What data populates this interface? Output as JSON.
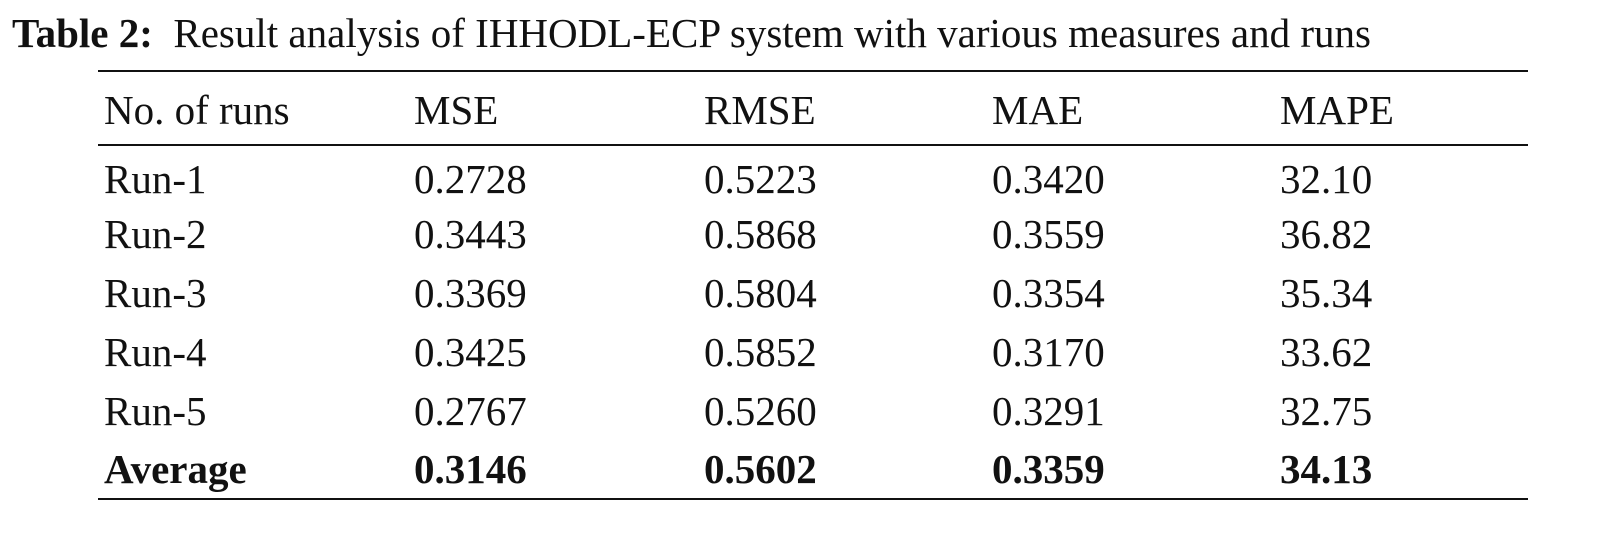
{
  "caption": {
    "label": "Table 2:",
    "text": "Result analysis of IHHODL-ECP system with various measures and runs"
  },
  "table": {
    "headers": [
      "No. of runs",
      "MSE",
      "RMSE",
      "MAE",
      "MAPE"
    ],
    "rows": [
      [
        "Run-1",
        "0.2728",
        "0.5223",
        "0.3420",
        "32.10"
      ],
      [
        "Run-2",
        "0.3443",
        "0.5868",
        "0.3559",
        "36.82"
      ],
      [
        "Run-3",
        "0.3369",
        "0.5804",
        "0.3354",
        "35.34"
      ],
      [
        "Run-4",
        "0.3425",
        "0.5852",
        "0.3170",
        "33.62"
      ],
      [
        "Run-5",
        "0.2767",
        "0.5260",
        "0.3291",
        "32.75"
      ]
    ],
    "average": [
      "Average",
      "0.3146",
      "0.5602",
      "0.3359",
      "34.13"
    ]
  }
}
